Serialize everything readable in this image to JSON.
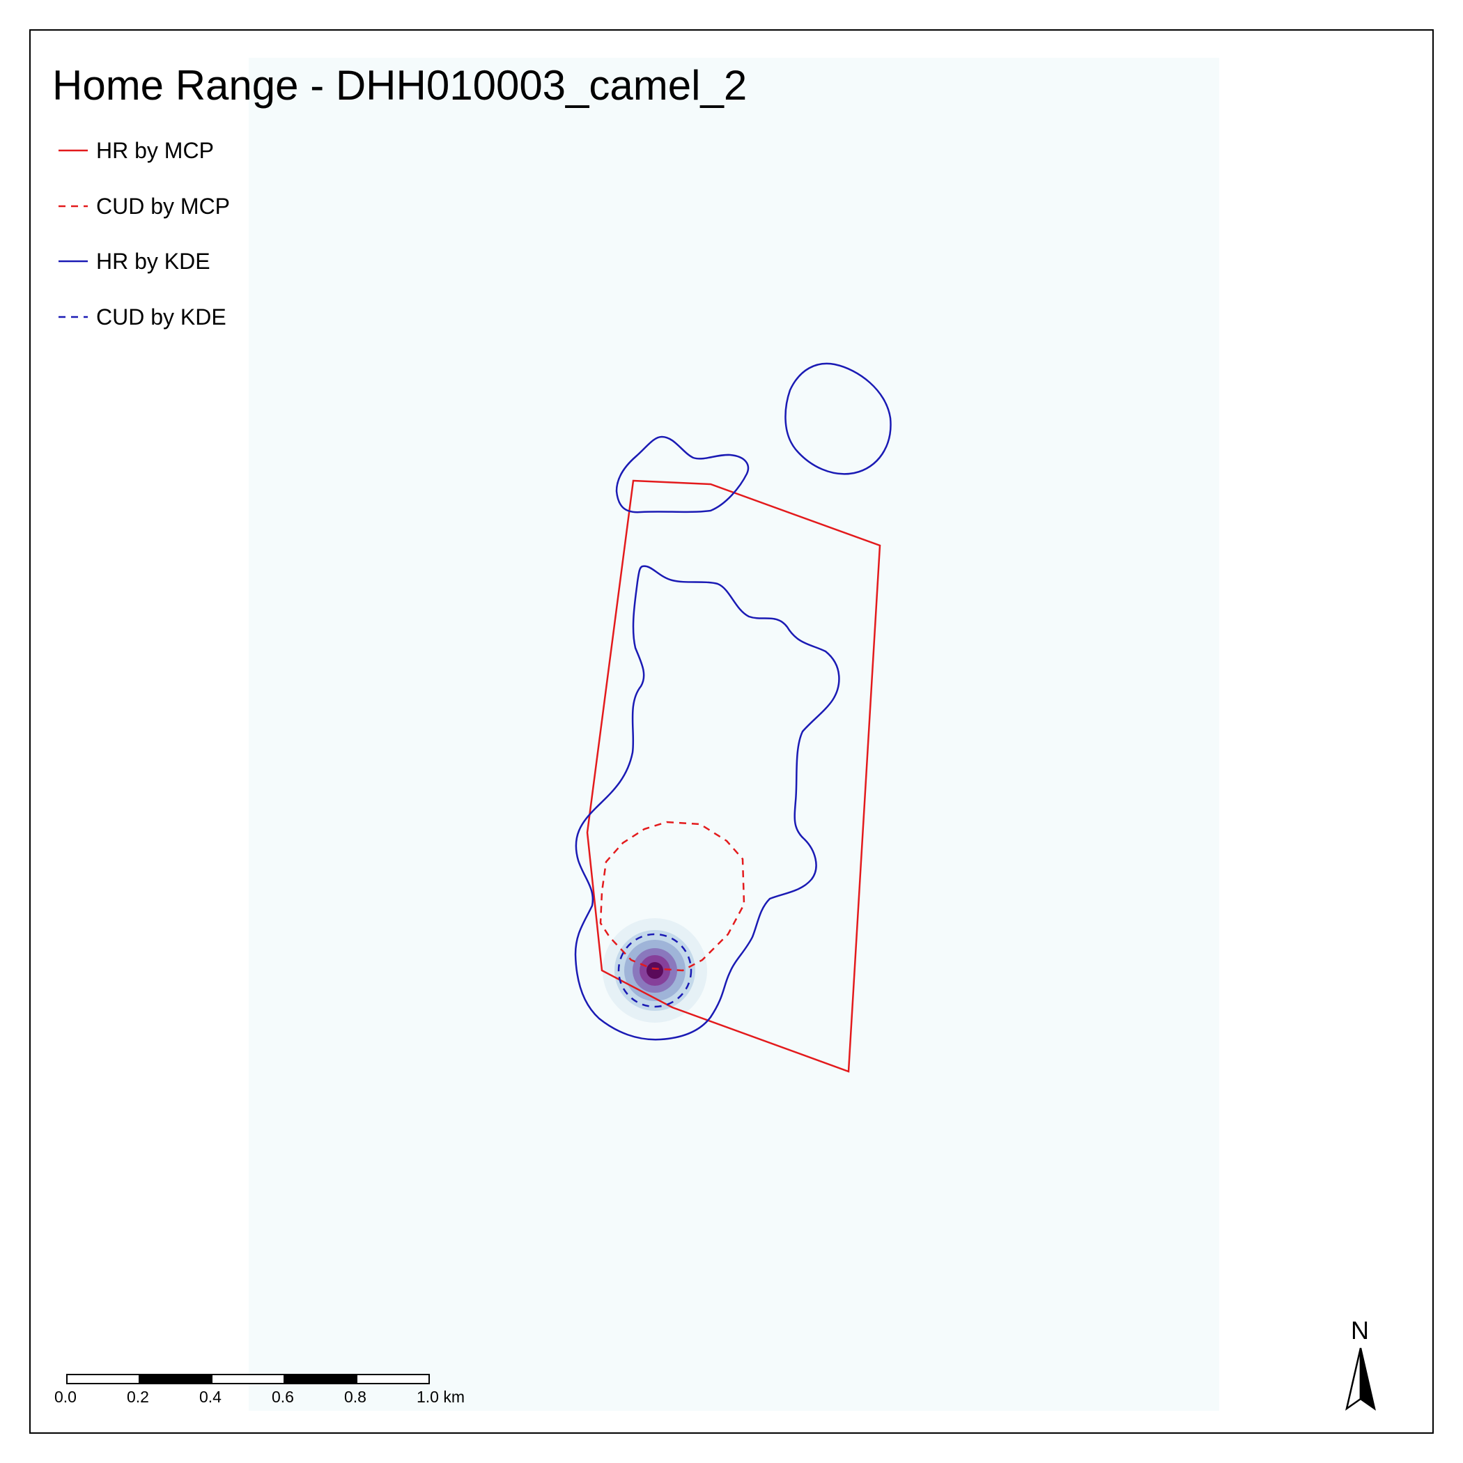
{
  "title": "Home Range -  DHH010003_camel_2",
  "legend": {
    "items": [
      {
        "label": "HR by MCP",
        "color": "#e31a1c",
        "dashed": false
      },
      {
        "label": "CUD by MCP",
        "color": "#e31a1c",
        "dashed": true
      },
      {
        "label": "HR by KDE",
        "color": "#1a1ab4",
        "dashed": false
      },
      {
        "label": "CUD by KDE",
        "color": "#1a1ab4",
        "dashed": true
      }
    ]
  },
  "scalebar": {
    "labels": [
      "0.0",
      "0.2",
      "0.4",
      "0.6",
      "0.8",
      "1.0 km"
    ]
  },
  "north_arrow": {
    "label": "N"
  },
  "colors": {
    "mcp": "#e31a1c",
    "kde": "#1a1ab4",
    "raster_background": "#f5fbfc",
    "density_peak": "#5a0a5a"
  },
  "icons": {
    "north_arrow": "north-arrow-icon"
  }
}
